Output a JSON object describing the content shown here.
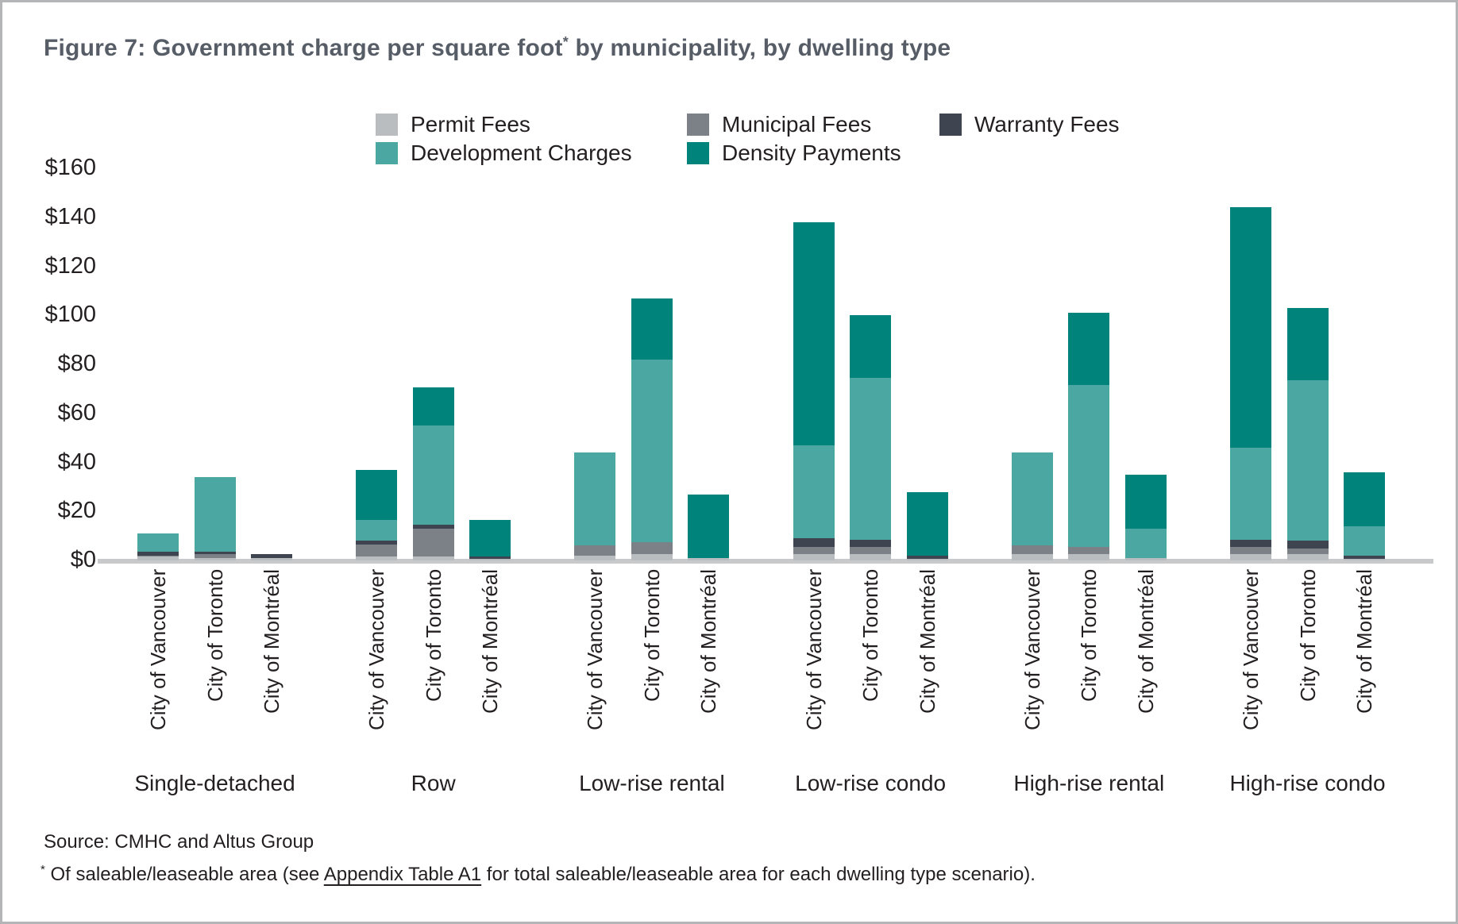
{
  "title": {
    "main": "Figure 7: Government charge per square foot",
    "sup": "*",
    "rest": " by municipality, by dwelling type"
  },
  "footer": {
    "source": "Source: CMHC and Altus Group",
    "footnote_sup": "*",
    "footnote_pre": " Of saleable/leaseable area (see ",
    "footnote_link": "Appendix Table A1",
    "footnote_post": " for total saleable/leaseable area for each dwelling type scenario)."
  },
  "colors": {
    "title": "#575d66",
    "text": "#231f20",
    "axis_line": "#c7c9cb",
    "border": "#b3b5b7"
  },
  "chart_data": {
    "type": "bar",
    "stacked": true,
    "title": "Figure 7: Government charge per square foot* by municipality, by dwelling type",
    "ylim": [
      0,
      160
    ],
    "ytick_step": 20,
    "ytick_labels": [
      "$0",
      "$20",
      "$40",
      "$60",
      "$80",
      "$100",
      "$120",
      "$140",
      "$160"
    ],
    "grid": false,
    "legend_position": "top",
    "units": "dollars per square foot",
    "series": [
      {
        "key": "permit",
        "name": "Permit Fees",
        "color": "#babdbf"
      },
      {
        "key": "municipal",
        "name": "Municipal Fees",
        "color": "#7c8187"
      },
      {
        "key": "warranty",
        "name": "Warranty Fees",
        "color": "#3e4550"
      },
      {
        "key": "development",
        "name": "Development Charges",
        "color": "#4ba7a1"
      },
      {
        "key": "density",
        "name": "Density Payments",
        "color": "#00837b"
      }
    ],
    "groups": [
      {
        "label": "Single-detached",
        "bars": [
          {
            "city": "City of Vancouver",
            "values": {
              "permit": 1.5,
              "municipal": 0.5,
              "warranty": 1.5,
              "development": 7.5,
              "density": 0
            }
          },
          {
            "city": "City of Toronto",
            "values": {
              "permit": 1.0,
              "municipal": 1.5,
              "warranty": 1.0,
              "development": 30.5,
              "density": 0
            }
          },
          {
            "city": "City of Montréal",
            "values": {
              "permit": 1.0,
              "municipal": 0,
              "warranty": 1.5,
              "development": 0,
              "density": 0
            }
          }
        ]
      },
      {
        "label": "Row",
        "bars": [
          {
            "city": "City of Vancouver",
            "values": {
              "permit": 1.5,
              "municipal": 5.0,
              "warranty": 1.5,
              "development": 8.5,
              "density": 20.5
            }
          },
          {
            "city": "City of Toronto",
            "values": {
              "permit": 1.5,
              "municipal": 11.5,
              "warranty": 1.5,
              "development": 40.5,
              "density": 15.5
            }
          },
          {
            "city": "City of Montréal",
            "values": {
              "permit": 0.5,
              "municipal": 0,
              "warranty": 1.0,
              "development": 0,
              "density": 15.0
            }
          }
        ]
      },
      {
        "label": "Low-rise rental",
        "bars": [
          {
            "city": "City of Vancouver",
            "values": {
              "permit": 2.0,
              "municipal": 4.0,
              "warranty": 0,
              "development": 38.0,
              "density": 0
            }
          },
          {
            "city": "City of Toronto",
            "values": {
              "permit": 2.5,
              "municipal": 5.0,
              "warranty": 0,
              "development": 74.5,
              "density": 25.0
            }
          },
          {
            "city": "City of Montréal",
            "values": {
              "permit": 1.0,
              "municipal": 0,
              "warranty": 0,
              "development": 0,
              "density": 26.0
            }
          }
        ]
      },
      {
        "label": "Low-rise condo",
        "bars": [
          {
            "city": "City of Vancouver",
            "values": {
              "permit": 2.5,
              "municipal": 3.0,
              "warranty": 3.5,
              "development": 38.0,
              "density": 91.0
            }
          },
          {
            "city": "City of Toronto",
            "values": {
              "permit": 2.5,
              "municipal": 3.0,
              "warranty": 3.0,
              "development": 66.0,
              "density": 25.5
            }
          },
          {
            "city": "City of Montréal",
            "values": {
              "permit": 0.5,
              "municipal": 0,
              "warranty": 1.5,
              "development": 0,
              "density": 26.0
            }
          }
        ]
      },
      {
        "label": "High-rise rental",
        "bars": [
          {
            "city": "City of Vancouver",
            "values": {
              "permit": 2.5,
              "municipal": 3.5,
              "warranty": 0,
              "development": 38.0,
              "density": 0
            }
          },
          {
            "city": "City of Toronto",
            "values": {
              "permit": 2.5,
              "municipal": 3.0,
              "warranty": 0,
              "development": 66.0,
              "density": 29.5
            }
          },
          {
            "city": "City of Montréal",
            "values": {
              "permit": 1.0,
              "municipal": 0,
              "warranty": 0,
              "development": 12.0,
              "density": 22.0
            }
          }
        ]
      },
      {
        "label": "High-rise condo",
        "bars": [
          {
            "city": "City of Vancouver",
            "values": {
              "permit": 2.5,
              "municipal": 3.0,
              "warranty": 3.0,
              "development": 37.5,
              "density": 98.0
            }
          },
          {
            "city": "City of Toronto",
            "values": {
              "permit": 2.5,
              "municipal": 2.5,
              "warranty": 3.0,
              "development": 65.5,
              "density": 29.5
            }
          },
          {
            "city": "City of Montréal",
            "values": {
              "permit": 0.5,
              "municipal": 0,
              "warranty": 1.5,
              "development": 12.0,
              "density": 22.0
            }
          }
        ]
      }
    ]
  }
}
